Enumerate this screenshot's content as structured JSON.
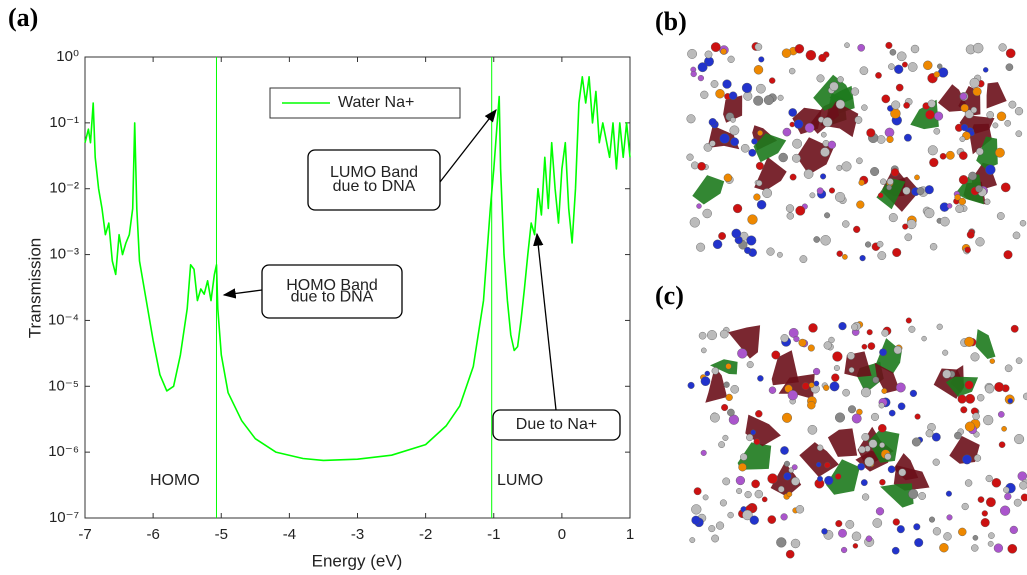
{
  "chart_data": {
    "type": "line",
    "panel_labels": [
      "(a)",
      "(b)",
      "(c)"
    ],
    "xlabel": "Energy (eV)",
    "ylabel": "Transmission",
    "log_y": true,
    "xlim": [
      -7,
      1
    ],
    "ylim": [
      1e-07,
      1
    ],
    "xticks": [
      -7,
      -6,
      -5,
      -4,
      -3,
      -2,
      -1,
      0,
      1
    ],
    "yticks": [
      {
        "value": 1e-07,
        "label": "10⁻⁷"
      },
      {
        "value": 1e-06,
        "label": "10⁻⁶"
      },
      {
        "value": 1e-05,
        "label": "10⁻⁵"
      },
      {
        "value": 0.0001,
        "label": "10⁻⁴"
      },
      {
        "value": 0.001,
        "label": "10⁻³"
      },
      {
        "value": 0.01,
        "label": "10⁻²"
      },
      {
        "value": 0.1,
        "label": "10⁻¹"
      },
      {
        "value": 1,
        "label": "10⁰"
      }
    ],
    "vlines": [
      -5.07,
      -1.03
    ],
    "annotations": {
      "homo": "HOMO",
      "lumo": "LUMO",
      "lumo_band": [
        "LUMO Band",
        "due to DNA"
      ],
      "homo_band": [
        "HOMO Band",
        "due to DNA"
      ],
      "na": "Due to Na+"
    },
    "legend": "top-center",
    "x": [
      -7,
      -6.95,
      -6.92,
      -6.88,
      -6.85,
      -6.8,
      -6.75,
      -6.7,
      -6.65,
      -6.6,
      -6.55,
      -6.5,
      -6.45,
      -6.4,
      -6.35,
      -6.3,
      -6.27,
      -6.24,
      -6.2,
      -6.1,
      -6.0,
      -5.9,
      -5.8,
      -5.7,
      -5.6,
      -5.5,
      -5.45,
      -5.4,
      -5.35,
      -5.3,
      -5.25,
      -5.2,
      -5.15,
      -5.1,
      -5.07,
      -5.05,
      -5.0,
      -4.9,
      -4.7,
      -4.5,
      -4.2,
      -3.8,
      -3.5,
      -3,
      -2.5,
      -2,
      -1.7,
      -1.5,
      -1.3,
      -1.15,
      -1.1,
      -1.05,
      -1.0,
      -0.95,
      -0.92,
      -0.9,
      -0.85,
      -0.8,
      -0.75,
      -0.7,
      -0.65,
      -0.6,
      -0.55,
      -0.5,
      -0.45,
      -0.4,
      -0.35,
      -0.3,
      -0.25,
      -0.2,
      -0.15,
      -0.1,
      -0.05,
      0,
      0.05,
      0.1,
      0.15,
      0.2,
      0.25,
      0.3,
      0.35,
      0.4,
      0.45,
      0.5,
      0.55,
      0.6,
      0.7,
      0.75,
      0.8,
      0.85,
      0.9,
      0.95,
      1.0
    ],
    "series": [
      {
        "name": "Water Na+",
        "color": "#00ff00",
        "values": [
          0.05,
          0.08,
          0.05,
          0.2,
          0.03,
          0.01,
          0.005,
          0.002,
          0.003,
          0.0008,
          0.0005,
          0.002,
          0.001,
          0.0015,
          0.002,
          0.005,
          0.1,
          0.005,
          0.0008,
          0.0002,
          5e-05,
          1.5e-05,
          8.5e-06,
          1e-05,
          3e-05,
          0.00015,
          0.0007,
          0.0006,
          0.0002,
          0.0003,
          0.00025,
          0.0004,
          0.0002,
          0.0005,
          0.0007,
          0.00015,
          3e-05,
          8e-06,
          3e-06,
          1.6e-06,
          1e-06,
          8e-07,
          7.5e-07,
          7.8e-07,
          9e-07,
          1.3e-06,
          2.5e-06,
          5e-06,
          2e-05,
          0.0002,
          0.001,
          0.005,
          0.02,
          0.1,
          0.25,
          0.02,
          0.001,
          0.0002,
          6e-05,
          3.5e-05,
          4e-05,
          0.0001,
          0.0003,
          0.001,
          0.003,
          0.002,
          0.01,
          0.004,
          0.03,
          0.005,
          0.05,
          0.01,
          0.003,
          0.02,
          0.05,
          0.005,
          0.0015,
          0.01,
          0.2,
          0.5,
          0.2,
          0.5,
          0.1,
          0.3,
          0.05,
          0.1,
          0.03,
          0.1,
          0.02,
          0.1,
          0.03,
          0.1,
          0.03
        ]
      }
    ]
  }
}
